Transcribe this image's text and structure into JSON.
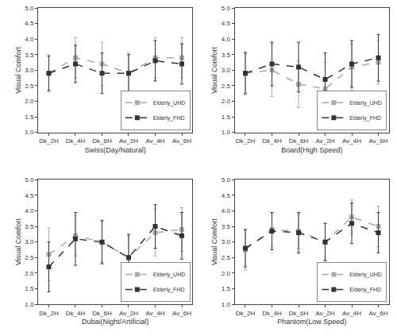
{
  "chart_data": [
    {
      "type": "line",
      "x_label": "Swiss(Day/Natural)",
      "y_label": "Visual Comfort",
      "categories": [
        "Dk_2H",
        "Dk_4H",
        "Dk_6H",
        "Av_2H",
        "Av_4H",
        "Av_6H"
      ],
      "series": [
        {
          "name": "Elderly_UHD",
          "color": "#aaaaaa",
          "line_style": "dashed",
          "marker": "square",
          "values": [
            2.9,
            3.4,
            3.2,
            2.9,
            3.4,
            3.4
          ],
          "errors": [
            0.6,
            0.65,
            0.7,
            0.65,
            0.65,
            0.65
          ]
        },
        {
          "name": "Elderly_FHD",
          "color": "#333333",
          "line_style": "dashed",
          "marker": "square",
          "values": [
            2.9,
            3.2,
            2.9,
            2.9,
            3.3,
            3.2
          ],
          "errors": [
            0.55,
            0.6,
            0.65,
            0.6,
            0.65,
            0.65
          ]
        }
      ],
      "ylim": [
        1.0,
        5.0
      ],
      "yticks": [
        {
          "value": 1.0,
          "label": "1.0"
        },
        1.5,
        {
          "value": 2.0,
          "label": "2.0"
        },
        2.5,
        {
          "value": 3.0,
          "label": "3.0"
        },
        3.5,
        {
          "value": 4.0,
          "label": "4.0"
        },
        4.5,
        {
          "value": 5.0,
          "label": "5.0"
        }
      ],
      "grid": false,
      "legend": "lower right"
    },
    {
      "type": "line",
      "x_label": "Board(High Speed)",
      "y_label": "Visual Comfort",
      "categories": [
        "Dk_2H",
        "Dk_4H",
        "Dk_6H",
        "Av_2H",
        "Av_4H",
        "Av_6H"
      ],
      "series": [
        {
          "name": "Elderly_UHD",
          "color": "#aaaaaa",
          "line_style": "dashed",
          "marker": "square",
          "values": [
            2.9,
            3.0,
            2.55,
            2.4,
            3.1,
            3.25
          ],
          "errors": [
            0.7,
            0.85,
            0.75,
            0.85,
            0.75,
            0.7
          ]
        },
        {
          "name": "Elderly_FHD",
          "color": "#333333",
          "line_style": "dashed",
          "marker": "square",
          "values": [
            2.9,
            3.2,
            3.1,
            2.7,
            3.2,
            3.4
          ],
          "errors": [
            0.65,
            0.7,
            0.8,
            0.85,
            0.75,
            0.75
          ]
        }
      ],
      "ylim": [
        1.0,
        5.0
      ],
      "yticks": [
        {
          "value": 1.0,
          "label": "1.0"
        },
        1.5,
        {
          "value": 2.0,
          "label": "2.0"
        },
        2.5,
        {
          "value": 3.0,
          "label": "3.0"
        },
        3.5,
        {
          "value": 4.0,
          "label": "4.0"
        },
        4.5,
        {
          "value": 5.0,
          "label": "5.0"
        }
      ],
      "grid": false,
      "legend": "lower right"
    },
    {
      "type": "line",
      "x_label": "Dubai(Night/Artificial)",
      "y_label": "Visual Comfort",
      "categories": [
        "Dk_2H",
        "Dk_4H",
        "Dk_6H",
        "Av_2H",
        "Av_4H",
        "Av_6H"
      ],
      "series": [
        {
          "name": "Elderly_UHD",
          "color": "#aaaaaa",
          "line_style": "dashed",
          "marker": "square",
          "values": [
            2.6,
            3.2,
            3.0,
            2.5,
            3.3,
            3.4
          ],
          "errors": [
            0.85,
            0.65,
            0.65,
            0.7,
            0.75,
            0.7
          ]
        },
        {
          "name": "Elderly_FHD",
          "color": "#333333",
          "line_style": "dashed",
          "marker": "square",
          "values": [
            2.2,
            3.1,
            3.0,
            2.5,
            3.5,
            3.2
          ],
          "errors": [
            0.8,
            0.85,
            0.7,
            0.75,
            0.7,
            0.75
          ]
        }
      ],
      "ylim": [
        1.0,
        5.0
      ],
      "yticks": [
        {
          "value": 1.0,
          "label": "1.0"
        },
        1.5,
        {
          "value": 2.0,
          "label": "2.0"
        },
        2.5,
        {
          "value": 3.0,
          "label": "3.0"
        },
        3.5,
        {
          "value": 4.0,
          "label": "4.0"
        },
        4.5,
        {
          "value": 5.0,
          "label": "5.0"
        }
      ],
      "grid": false,
      "legend": "lower right"
    },
    {
      "type": "line",
      "x_label": "Phantom(Low Speed)",
      "y_label": "Visual Comfort",
      "categories": [
        "Dk_2H",
        "Dk_4H",
        "Dk_6H",
        "Av_2H",
        "Av_4H",
        "Av_6H"
      ],
      "series": [
        {
          "name": "Elderly_UHD",
          "color": "#aaaaaa",
          "line_style": "dashed",
          "marker": "square",
          "values": [
            2.75,
            3.4,
            3.35,
            3.0,
            3.8,
            3.5
          ],
          "errors": [
            0.65,
            0.55,
            0.55,
            0.6,
            0.55,
            0.65
          ]
        },
        {
          "name": "Elderly_FHD",
          "color": "#333333",
          "line_style": "dashed",
          "marker": "square",
          "values": [
            2.8,
            3.35,
            3.3,
            3.0,
            3.6,
            3.3
          ],
          "errors": [
            0.6,
            0.6,
            0.65,
            0.6,
            0.65,
            0.65
          ]
        }
      ],
      "ylim": [
        1.0,
        5.0
      ],
      "yticks": [
        {
          "value": 1.0,
          "label": "1.0"
        },
        1.5,
        {
          "value": 2.0,
          "label": "2.0"
        },
        2.5,
        {
          "value": 3.0,
          "label": "3.0"
        },
        3.5,
        {
          "value": 4.0,
          "label": "4.0"
        },
        4.5,
        {
          "value": 5.0,
          "label": "5.0"
        }
      ],
      "grid": false,
      "legend": "lower right"
    }
  ]
}
